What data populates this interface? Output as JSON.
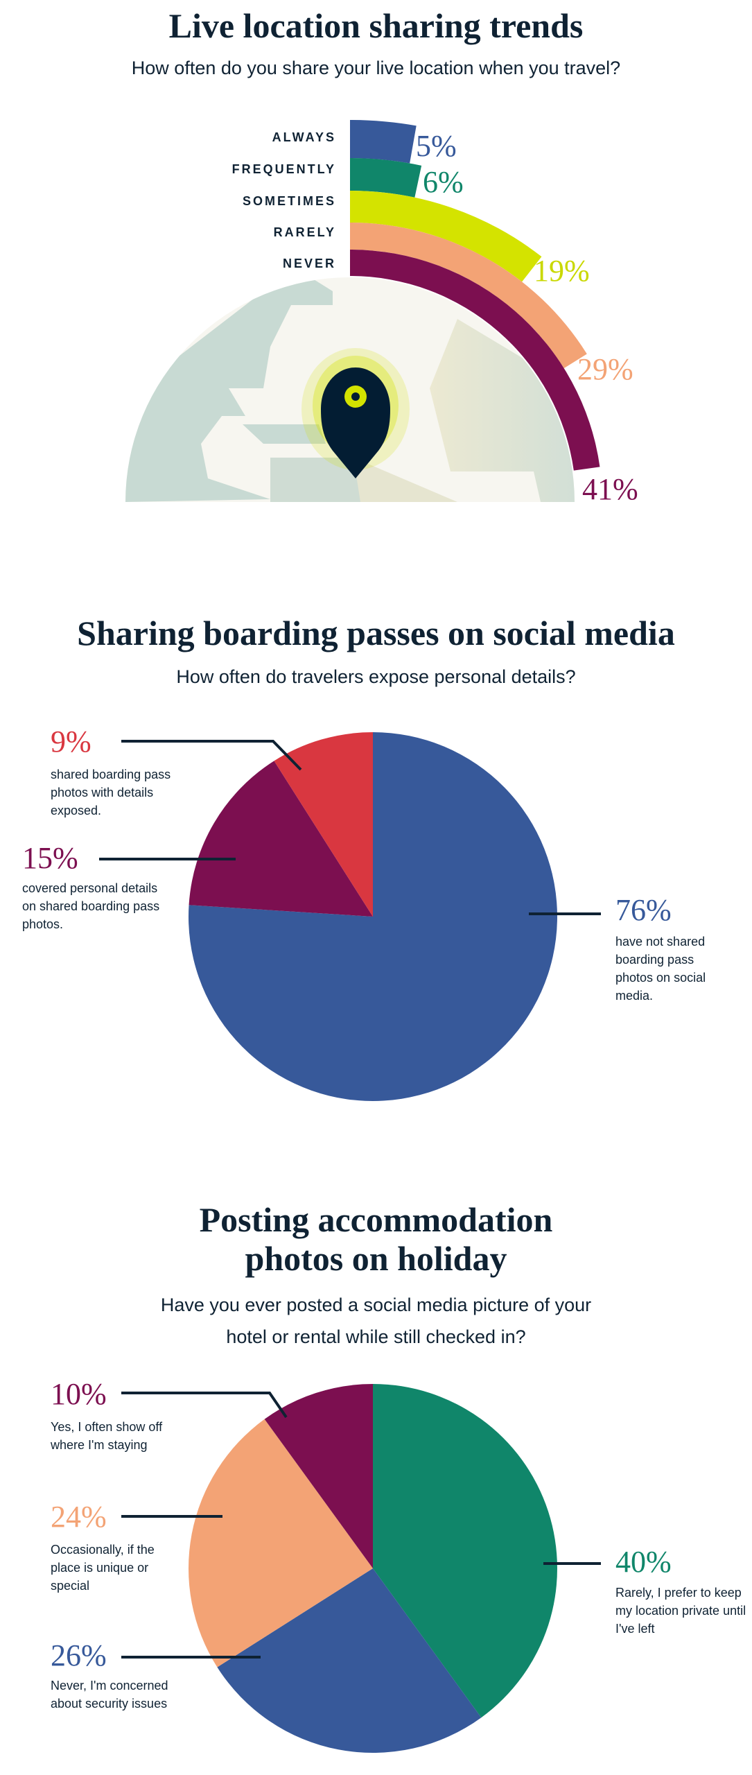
{
  "colors": {
    "blue": "#37599a",
    "green": "#10866a",
    "lime": "#d4e300",
    "salmon": "#f3a375",
    "maroon": "#7c0f50",
    "red": "#d93740",
    "ink": "#0f2233"
  },
  "chart_data": [
    {
      "type": "bar",
      "subtype": "radial-bar",
      "title": "Live location sharing trends",
      "subtitle": "How often do you share your live location when you travel?",
      "categories": [
        "ALWAYS",
        "FREQUENTLY",
        "SOMETIMES",
        "RARELY",
        "NEVER"
      ],
      "values": [
        5,
        6,
        19,
        29,
        41
      ],
      "labels": [
        "5%",
        "6%",
        "19%",
        "29%",
        "41%"
      ],
      "colors": [
        "#37599a",
        "#10866a",
        "#d4e300",
        "#f3a375",
        "#7c0f50"
      ],
      "icon": "map-pin-icon over globe"
    },
    {
      "type": "pie",
      "title": "Sharing boarding passes on social media",
      "subtitle": "How often do travelers expose personal details?",
      "slices": [
        {
          "value": 76,
          "label": "76%",
          "desc": "have not shared boarding pass photos on social media.",
          "color": "#37599a"
        },
        {
          "value": 15,
          "label": "15%",
          "desc": "covered personal details on shared boarding pass photos.",
          "color": "#7c0f50"
        },
        {
          "value": 9,
          "label": "9%",
          "desc": "shared boarding pass photos with details exposed.",
          "color": "#d93740"
        }
      ]
    },
    {
      "type": "pie",
      "title_lines": [
        "Posting accommodation",
        "photos on holiday"
      ],
      "subtitle_lines": [
        "Have you ever posted a social media picture of your",
        "hotel or rental while still checked in?"
      ],
      "slices": [
        {
          "value": 40,
          "label": "40%",
          "desc": "Rarely, I prefer to keep my location private until I've left",
          "color": "#10866a"
        },
        {
          "value": 26,
          "label": "26%",
          "desc": "Never, I'm concerned about security issues",
          "color": "#37599a"
        },
        {
          "value": 24,
          "label": "24%",
          "desc": "Occasionally, if the place is unique or special",
          "color": "#f3a375"
        },
        {
          "value": 10,
          "label": "10%",
          "desc": "Yes, I often show off where I'm staying",
          "color": "#7c0f50"
        }
      ]
    }
  ]
}
